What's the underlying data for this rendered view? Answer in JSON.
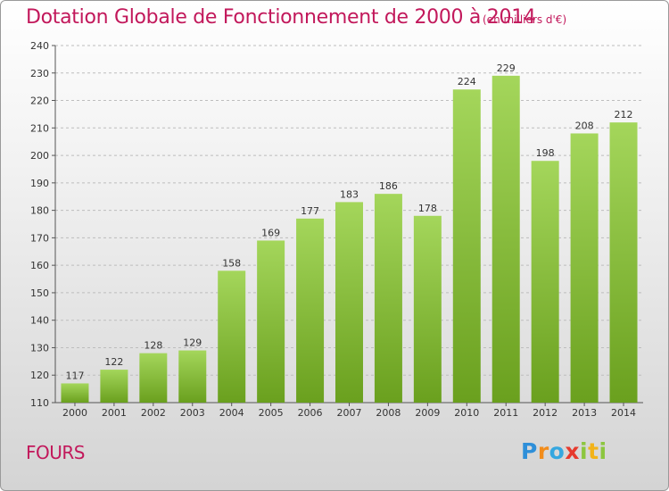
{
  "title": "Dotation Globale de Fonctionnement de 2000 à 2014",
  "subtitle": "(en milliers d'€)",
  "commune": "FOURS",
  "logo": {
    "letters": [
      "P",
      "r",
      "o",
      "x",
      "i",
      "t",
      "i"
    ],
    "colors": [
      "#2e8fd9",
      "#f28c1a",
      "#35a7e0",
      "#e63a2e",
      "#8cc63f",
      "#f2b31a",
      "#8cc63f"
    ]
  },
  "colors": {
    "bar_top": "#a4d65b",
    "bar_bottom": "#6aa01e",
    "title": "#c2185b"
  },
  "chart_data": {
    "type": "bar",
    "title": "Dotation Globale de Fonctionnement de 2000 à 2014",
    "subtitle": "(en milliers d'€)",
    "categories": [
      "2000",
      "2001",
      "2002",
      "2003",
      "2004",
      "2005",
      "2006",
      "2007",
      "2008",
      "2009",
      "2010",
      "2011",
      "2012",
      "2013",
      "2014"
    ],
    "values": [
      117,
      122,
      128,
      129,
      158,
      169,
      177,
      183,
      186,
      178,
      224,
      229,
      198,
      208,
      212
    ],
    "ylim": [
      110,
      240
    ],
    "yticks": [
      110,
      120,
      130,
      140,
      150,
      160,
      170,
      180,
      190,
      200,
      210,
      220,
      230,
      240
    ],
    "grid": "horizontal dashed",
    "xlabel": "",
    "ylabel": ""
  }
}
